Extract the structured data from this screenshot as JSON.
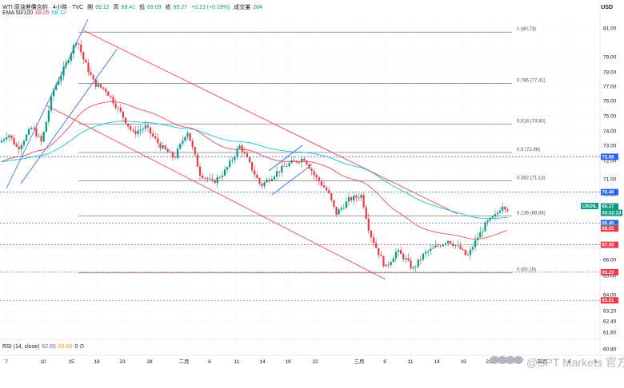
{
  "header": {
    "line1": {
      "title": "WTI 原油差價合約 · 4小時 · TVC",
      "open_label": "開",
      "open": "69.12",
      "high_label": "高",
      "high": "69.41",
      "low_label": "低",
      "low": "69.09",
      "close_label": "收",
      "close": "69.27",
      "change": "+0.13 (+0.19%)",
      "volume_label": "成交量",
      "volume": "284"
    },
    "line2": {
      "label": "EMA 50/100",
      "ema50": "68.05",
      "ema100": "68.12"
    }
  },
  "currency": "USD",
  "rsi_header": {
    "label": "RSI (14, close)",
    "value1": "62.65",
    "value2": "63.80",
    "extra": "0 ∅"
  },
  "watermark": "@SPT Markets 官方",
  "colors": {
    "up": "#089981",
    "down": "#f23645",
    "ema50": "#f23645",
    "ema100": "#00bcd4",
    "trend": "#f23645",
    "channel": "#2962ff",
    "fib": "#787b86"
  },
  "chart_data": {
    "type": "candlestick",
    "instrument": "WTI 原油差價合約 · 4小時 · TVC",
    "y_ticks": [
      "81.00",
      "79.00",
      "78.00",
      "77.00",
      "76.00",
      "75.00",
      "74.00",
      "73.00",
      "72.00",
      "71.00",
      "70.00",
      "69.00",
      "68.00",
      "67.00",
      "66.00",
      "65.00",
      "64.00",
      "63.20",
      "62.40",
      "61.60",
      "60.80"
    ],
    "x_ticks": [
      "7",
      "10",
      "15",
      "18",
      "23",
      "28",
      "二月",
      "6",
      "11",
      "14",
      "19",
      "22",
      "三月",
      "6",
      "11",
      "14",
      "19",
      "22",
      "27",
      "四月",
      "4",
      "9"
    ],
    "fib_levels": [
      {
        "ratio": "1",
        "price": 80.73,
        "label": "1 (80.73)"
      },
      {
        "ratio": "0.786",
        "price": 77.41,
        "label": "0.786 (77.41)"
      },
      {
        "ratio": "0.618",
        "price": 74.8,
        "label": "0.618 (74.80)"
      },
      {
        "ratio": "0.5",
        "price": 72.96,
        "label": "0.5 (72.96)"
      },
      {
        "ratio": "0.382",
        "price": 71.13,
        "label": "0.382 (71.13)"
      },
      {
        "ratio": "0.236",
        "price": 68.86,
        "label": "0.236 (68.86)"
      },
      {
        "ratio": "0",
        "price": 65.19,
        "label": "0 (65.19)"
      }
    ],
    "price_badges": [
      {
        "text": "72.68",
        "price": 72.68,
        "color": "#2962ff"
      },
      {
        "text": "70.40",
        "price": 70.4,
        "color": "#2962ff"
      },
      {
        "text": "USOIL",
        "price": 69.27,
        "color": "#089981",
        "kind": "symbol"
      },
      {
        "text": "69.27",
        "price": 69.27,
        "color": "#089981"
      },
      {
        "text": "03:32:23",
        "price": 69.27,
        "color": "#089981",
        "kind": "timer"
      },
      {
        "text": "68.40",
        "price": 68.4,
        "color": "#2962ff"
      },
      {
        "text": "68.12",
        "price": 68.12,
        "color": "#00bcd4"
      },
      {
        "text": "68.05",
        "price": 68.05,
        "color": "#f23645"
      },
      {
        "text": "67.00",
        "price": 67.0,
        "color": "#f23645"
      },
      {
        "text": "65.23",
        "price": 65.23,
        "color": "#f23645"
      },
      {
        "text": "63.61",
        "price": 63.61,
        "color": "#f23645"
      }
    ],
    "dashed_levels": [
      {
        "price": 72.68,
        "color": "#2962ff"
      },
      {
        "price": 70.4,
        "color": "#2962ff"
      },
      {
        "price": 68.4,
        "color": "#2962ff"
      },
      {
        "price": 67.0,
        "color": "#f23645"
      },
      {
        "price": 65.23,
        "color": "#f23645"
      },
      {
        "price": 63.61,
        "color": "#f23645"
      }
    ],
    "path_keypoints": [
      {
        "x": 0,
        "price": 73.6
      },
      {
        "x": 10,
        "price": 74.2
      },
      {
        "x": 22,
        "price": 73.2
      },
      {
        "x": 40,
        "price": 74.6
      },
      {
        "x": 52,
        "price": 73.6
      },
      {
        "x": 66,
        "price": 76.9
      },
      {
        "x": 82,
        "price": 78.6
      },
      {
        "x": 96,
        "price": 80.3
      },
      {
        "x": 104,
        "price": 79.0
      },
      {
        "x": 118,
        "price": 77.4
      },
      {
        "x": 132,
        "price": 77.0
      },
      {
        "x": 150,
        "price": 75.6
      },
      {
        "x": 166,
        "price": 74.2
      },
      {
        "x": 182,
        "price": 74.6
      },
      {
        "x": 200,
        "price": 73.4
      },
      {
        "x": 218,
        "price": 72.6
      },
      {
        "x": 234,
        "price": 74.4
      },
      {
        "x": 250,
        "price": 71.6
      },
      {
        "x": 266,
        "price": 71.0
      },
      {
        "x": 282,
        "price": 71.8
      },
      {
        "x": 300,
        "price": 73.4
      },
      {
        "x": 312,
        "price": 72.2
      },
      {
        "x": 326,
        "price": 70.8
      },
      {
        "x": 344,
        "price": 71.6
      },
      {
        "x": 360,
        "price": 72.2
      },
      {
        "x": 380,
        "price": 72.6
      },
      {
        "x": 394,
        "price": 71.4
      },
      {
        "x": 410,
        "price": 70.4
      },
      {
        "x": 420,
        "price": 69.0
      },
      {
        "x": 436,
        "price": 69.9
      },
      {
        "x": 452,
        "price": 70.2
      },
      {
        "x": 462,
        "price": 67.8
      },
      {
        "x": 472,
        "price": 66.6
      },
      {
        "x": 482,
        "price": 65.5
      },
      {
        "x": 496,
        "price": 66.6
      },
      {
        "x": 508,
        "price": 66.0
      },
      {
        "x": 516,
        "price": 65.4
      },
      {
        "x": 530,
        "price": 66.4
      },
      {
        "x": 546,
        "price": 66.9
      },
      {
        "x": 560,
        "price": 67.3
      },
      {
        "x": 576,
        "price": 66.7
      },
      {
        "x": 584,
        "price": 66.2
      },
      {
        "x": 596,
        "price": 67.4
      },
      {
        "x": 608,
        "price": 68.4
      },
      {
        "x": 620,
        "price": 68.9
      },
      {
        "x": 628,
        "price": 69.6
      },
      {
        "x": 636,
        "price": 69.27
      }
    ]
  }
}
